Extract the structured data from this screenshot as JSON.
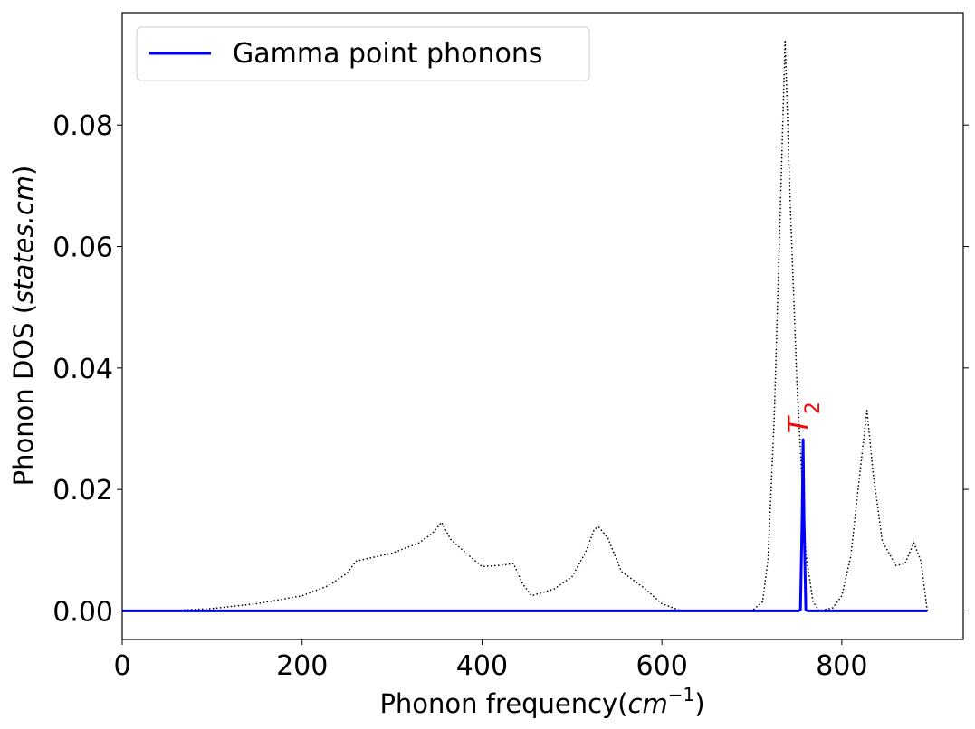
{
  "chart_data": {
    "type": "line",
    "xlabel_text": "Phonon frequency(",
    "xlabel_math": "cm",
    "xlabel_sup": "−1",
    "xlabel_close": ")",
    "ylabel_text": "Phonon DOS (",
    "ylabel_math": "states.cm",
    "ylabel_close": ")",
    "xlim": [
      0,
      935
    ],
    "ylim": [
      -0.0047,
      0.0985
    ],
    "x_ticks": [
      0,
      200,
      400,
      600,
      800
    ],
    "x_tick_labels": [
      "0",
      "200",
      "400",
      "600",
      "800"
    ],
    "y_ticks": [
      0.0,
      0.02,
      0.04,
      0.06,
      0.08
    ],
    "y_tick_labels": [
      "0.00",
      "0.02",
      "0.04",
      "0.06",
      "0.08"
    ],
    "grid": false,
    "legend_placement": "top-left",
    "series": [
      {
        "label": "",
        "style": "dotted",
        "color": "#000000",
        "x": [
          0,
          50,
          100,
          150,
          200,
          230,
          250,
          260,
          300,
          330,
          345,
          355,
          365,
          380,
          400,
          420,
          435,
          445,
          455,
          480,
          500,
          515,
          525,
          530,
          540,
          555,
          580,
          600,
          620,
          700,
          712,
          718,
          725,
          732,
          737,
          742,
          750,
          760,
          768,
          775,
          790,
          800,
          810,
          820,
          828,
          835,
          845,
          860,
          870,
          880,
          888,
          895
        ],
        "y": [
          0,
          0,
          0.0004,
          0.0012,
          0.0025,
          0.0042,
          0.0062,
          0.0082,
          0.0095,
          0.0112,
          0.0128,
          0.0146,
          0.0118,
          0.0098,
          0.0073,
          0.0075,
          0.0078,
          0.0045,
          0.0025,
          0.0036,
          0.0056,
          0.0096,
          0.0135,
          0.0138,
          0.012,
          0.0065,
          0.0038,
          0.0012,
          0.0001,
          0,
          0.0015,
          0.0085,
          0.032,
          0.068,
          0.094,
          0.07,
          0.038,
          0.0095,
          0.0015,
          0,
          0.0005,
          0.0025,
          0.009,
          0.0225,
          0.033,
          0.0225,
          0.0115,
          0.0075,
          0.0077,
          0.0112,
          0.0082,
          0
        ]
      },
      {
        "label": "Gamma point phonons",
        "style": "solid",
        "color": "#0000ff",
        "x": [
          0,
          752,
          754,
          756,
          757,
          758,
          760,
          762,
          895
        ],
        "y": [
          0,
          0,
          0.0002,
          0.0155,
          0.0282,
          0.0155,
          0.0002,
          0,
          0
        ]
      }
    ],
    "annotations": [
      {
        "text": "T",
        "subscript": "2",
        "x": 762,
        "y": 0.0292,
        "color": "#ff0000",
        "rotation": -90
      }
    ]
  }
}
